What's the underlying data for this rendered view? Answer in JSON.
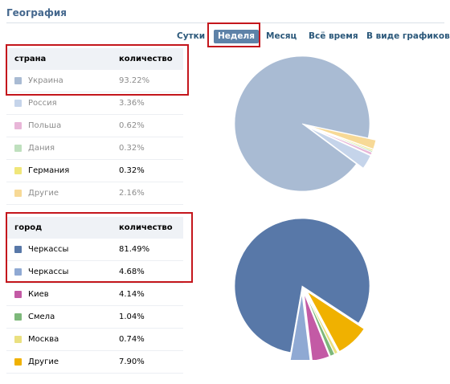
{
  "header": {
    "title": "География"
  },
  "tabs": [
    {
      "label": "Сутки",
      "active": false
    },
    {
      "label": "Неделя",
      "active": true
    },
    {
      "label": "Месяц",
      "active": false
    },
    {
      "label": "Всё время",
      "active": false
    },
    {
      "label": "В виде графиков",
      "active": false
    }
  ],
  "countries": {
    "col1": "страна",
    "col2": "количество",
    "rows": [
      {
        "name": "Украина",
        "value": "93.22%",
        "color": "#a9bbd3"
      },
      {
        "name": "Россия",
        "value": "3.36%",
        "color": "#c5d4ea"
      },
      {
        "name": "Польша",
        "value": "0.62%",
        "color": "#e8b6d8"
      },
      {
        "name": "Дания",
        "value": "0.32%",
        "color": "#bfe0be"
      },
      {
        "name": "Германия",
        "value": "0.32%",
        "color": "#f0e67a"
      },
      {
        "name": "Другие",
        "value": "2.16%",
        "color": "#f7d996"
      }
    ]
  },
  "cities": {
    "col1": "город",
    "col2": "количество",
    "rows": [
      {
        "name": "Черкассы",
        "value": "81.49%",
        "color": "#5878a8"
      },
      {
        "name": "Черкассы",
        "value": "4.68%",
        "color": "#8fa9d3"
      },
      {
        "name": "Киев",
        "value": "4.14%",
        "color": "#c35aa5"
      },
      {
        "name": "Смела",
        "value": "1.04%",
        "color": "#7db87a"
      },
      {
        "name": "Москва",
        "value": "0.74%",
        "color": "#eae080"
      },
      {
        "name": "Другие",
        "value": "7.90%",
        "color": "#f0b100"
      }
    ]
  },
  "chart_data": [
    {
      "type": "pie",
      "categories": [
        "Украина",
        "Россия",
        "Польша",
        "Дания",
        "Германия",
        "Другие"
      ],
      "values": [
        93.22,
        3.36,
        0.62,
        0.32,
        0.32,
        2.16
      ],
      "colors": [
        "#a9bbd3",
        "#c5d4ea",
        "#e8b6d8",
        "#bfe0be",
        "#f0e67a",
        "#f7d996"
      ],
      "explode_from_index": 1
    },
    {
      "type": "pie",
      "categories": [
        "Черкассы",
        "Черкассы",
        "Киев",
        "Смела",
        "Москва",
        "Другие"
      ],
      "values": [
        81.49,
        4.68,
        4.14,
        1.04,
        0.74,
        7.9
      ],
      "colors": [
        "#5878a8",
        "#8fa9d3",
        "#c35aa5",
        "#7db87a",
        "#eae080",
        "#f0b100"
      ],
      "explode_from_index": 1
    }
  ]
}
